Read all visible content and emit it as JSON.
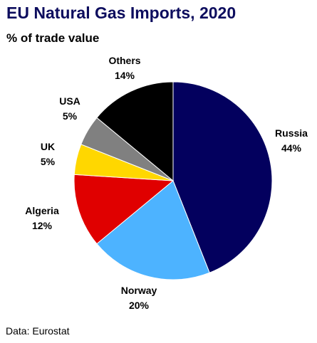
{
  "chart_data": {
    "type": "pie",
    "title": "EU Natural Gas Imports, 2020",
    "subtitle": "% of trade value",
    "slices": [
      {
        "name": "Russia",
        "value": 44,
        "label": "44%",
        "color": "#03005e"
      },
      {
        "name": "Norway",
        "value": 20,
        "label": "20%",
        "color": "#4db3ff"
      },
      {
        "name": "Algeria",
        "value": 12,
        "label": "12%",
        "color": "#e00000"
      },
      {
        "name": "UK",
        "value": 5,
        "label": "5%",
        "color": "#ffd700"
      },
      {
        "name": "USA",
        "value": 5,
        "label": "5%",
        "color": "#808080"
      },
      {
        "name": "Others",
        "value": 14,
        "label": "14%",
        "color": "#000000"
      }
    ],
    "start_position": "top",
    "direction": "clockwise"
  },
  "source": "Data: Eurostat"
}
